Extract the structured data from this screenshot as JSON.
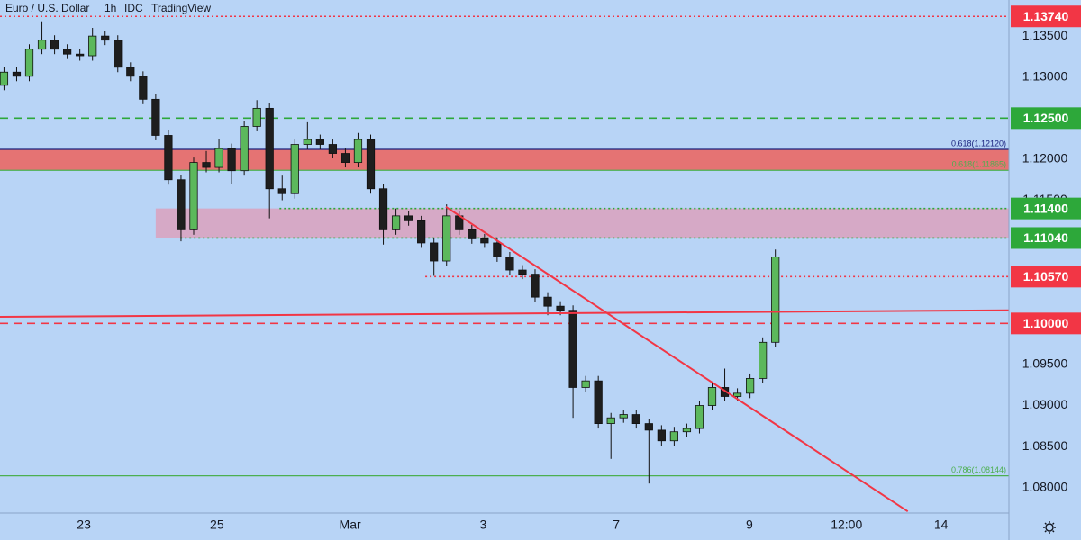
{
  "header": {
    "symbol": "Euro / U.S. Dollar",
    "interval": "1h",
    "source": "IDC",
    "brand": "TradingView"
  },
  "chart_data": {
    "type": "candlestick",
    "xlim": [
      -1.26,
      13.9
    ],
    "ylim": [
      1.0769,
      1.1394
    ],
    "xticks": [
      {
        "value": 0,
        "label": "23"
      },
      {
        "value": 2,
        "label": "25"
      },
      {
        "value": 4,
        "label": "Mar"
      },
      {
        "value": 6,
        "label": "3"
      },
      {
        "value": 8,
        "label": "7"
      },
      {
        "value": 10,
        "label": "9"
      },
      {
        "value": 11.46,
        "label": "12:00"
      },
      {
        "value": 12.88,
        "label": "14"
      }
    ],
    "yticks": [
      {
        "value": 1.135,
        "label": "1.13500"
      },
      {
        "value": 1.13,
        "label": "1.13000"
      },
      {
        "value": 1.12,
        "label": "1.12000"
      },
      {
        "value": 1.115,
        "label": "1.11500"
      },
      {
        "value": 1.095,
        "label": "1.09500"
      },
      {
        "value": 1.09,
        "label": "1.09000"
      },
      {
        "value": 1.085,
        "label": "1.08500"
      },
      {
        "value": 1.08,
        "label": "1.08000"
      }
    ],
    "up_color": "#5cb85c",
    "down_color": "#1e1e1e",
    "background": "#b8d4f6",
    "x": [
      -1.2,
      -1.01,
      -0.82,
      -0.63,
      -0.44,
      -0.25,
      -0.06,
      0.13,
      0.32,
      0.51,
      0.7,
      0.89,
      1.08,
      1.27,
      1.46,
      1.65,
      1.84,
      2.03,
      2.22,
      2.41,
      2.6,
      2.79,
      2.98,
      3.17,
      3.36,
      3.55,
      3.74,
      3.93,
      4.12,
      4.31,
      4.5,
      4.69,
      4.88,
      5.07,
      5.26,
      5.45,
      5.64,
      5.83,
      6.02,
      6.21,
      6.4,
      6.59,
      6.78,
      6.97,
      7.16,
      7.35,
      7.54,
      7.73,
      7.92,
      8.11,
      8.3,
      8.49,
      8.68,
      8.87,
      9.06,
      9.25,
      9.44,
      9.63,
      9.82,
      10.01,
      10.2,
      10.39
    ],
    "open": [
      1.129,
      1.1306,
      1.1301,
      1.1334,
      1.1345,
      1.1334,
      1.1328,
      1.1326,
      1.135,
      1.1345,
      1.1312,
      1.1301,
      1.1273,
      1.1229,
      1.1175,
      1.1114,
      1.1196,
      1.119,
      1.1213,
      1.1186,
      1.124,
      1.1262,
      1.1164,
      1.1158,
      1.1218,
      1.1224,
      1.1218,
      1.1207,
      1.1196,
      1.1224,
      1.1164,
      1.1114,
      1.1131,
      1.1125,
      1.1098,
      1.1076,
      1.1131,
      1.1114,
      1.1103,
      1.1098,
      1.1081,
      1.1065,
      1.106,
      1.1032,
      1.1021,
      1.1016,
      1.0922,
      1.093,
      1.0878,
      1.0885,
      1.0889,
      1.0878,
      1.087,
      1.0857,
      1.0868,
      1.0872,
      1.09,
      1.0922,
      1.0911,
      1.0915,
      1.0933,
      1.0977
    ],
    "high": [
      1.1312,
      1.1312,
      1.134,
      1.1368,
      1.1351,
      1.134,
      1.1334,
      1.136,
      1.1356,
      1.1351,
      1.1318,
      1.1307,
      1.1279,
      1.1235,
      1.1181,
      1.1202,
      1.121,
      1.1225,
      1.1219,
      1.1246,
      1.1272,
      1.1268,
      1.118,
      1.1224,
      1.1245,
      1.123,
      1.1224,
      1.1213,
      1.1232,
      1.123,
      1.117,
      1.114,
      1.1137,
      1.1131,
      1.1104,
      1.1145,
      1.1137,
      1.112,
      1.1109,
      1.1104,
      1.1087,
      1.1071,
      1.1066,
      1.1038,
      1.1027,
      1.1022,
      1.0936,
      1.0936,
      1.0891,
      1.0895,
      1.0895,
      1.0884,
      1.0876,
      1.0874,
      1.0878,
      1.0906,
      1.0928,
      1.0945,
      1.0921,
      1.0939,
      1.0983,
      1.109
    ],
    "low": [
      1.1284,
      1.1295,
      1.1295,
      1.1328,
      1.1328,
      1.1322,
      1.132,
      1.132,
      1.1339,
      1.1306,
      1.1295,
      1.1267,
      1.1223,
      1.1169,
      1.11,
      1.1108,
      1.1184,
      1.1184,
      1.117,
      1.118,
      1.1234,
      1.1128,
      1.115,
      1.1152,
      1.1212,
      1.1212,
      1.1201,
      1.119,
      1.119,
      1.1158,
      1.1096,
      1.1108,
      1.1119,
      1.1092,
      1.1058,
      1.107,
      1.1108,
      1.1097,
      1.1092,
      1.1075,
      1.1059,
      1.1054,
      1.1026,
      1.101,
      1.101,
      1.0885,
      1.0916,
      1.0872,
      1.0835,
      1.0879,
      1.0872,
      1.0805,
      1.0851,
      1.0851,
      1.0862,
      1.0866,
      1.0894,
      1.0905,
      1.0905,
      1.0909,
      1.0927,
      1.0971
    ],
    "close": [
      1.1306,
      1.1301,
      1.1334,
      1.1345,
      1.1334,
      1.1328,
      1.1326,
      1.135,
      1.1345,
      1.1312,
      1.1301,
      1.1273,
      1.1229,
      1.1175,
      1.1114,
      1.1196,
      1.119,
      1.1213,
      1.1186,
      1.124,
      1.1262,
      1.1164,
      1.1158,
      1.1218,
      1.1224,
      1.1218,
      1.1207,
      1.1196,
      1.1224,
      1.1164,
      1.1114,
      1.1131,
      1.1125,
      1.1098,
      1.1076,
      1.1131,
      1.1114,
      1.1103,
      1.1098,
      1.1081,
      1.1065,
      1.106,
      1.1032,
      1.1021,
      1.1016,
      1.0922,
      1.093,
      1.0878,
      1.0885,
      1.0889,
      1.0878,
      1.087,
      1.0857,
      1.0868,
      1.0872,
      1.09,
      1.0922,
      1.0911,
      1.0915,
      1.0933,
      1.0977,
      1.1081
    ],
    "zones": [
      {
        "y": [
          1.11865,
          1.1212
        ],
        "color": "#e57373"
      },
      {
        "x_start": 1.08,
        "y": [
          1.1104,
          1.114
        ],
        "color": "#d6a9c6"
      }
    ],
    "fib_levels": [
      {
        "value": 1.1212,
        "label": "0.618(1.12120)",
        "color": "#1a237e"
      },
      {
        "value": 1.11865,
        "label": "0.618(1.11865)",
        "color": "#4caf50"
      },
      {
        "value": 1.08144,
        "label": "0.786(1.08144)",
        "color": "#4caf50"
      }
    ],
    "levels": [
      {
        "value": 1.1374,
        "label": "1.13740",
        "color": "#f23645",
        "style": "dotted"
      },
      {
        "value": 1.125,
        "label": "1.12500",
        "color": "#2da83a",
        "style": "dashed"
      },
      {
        "value": 1.114,
        "label": "1.11400",
        "color": "#2da83a",
        "style": "dotted",
        "x_start": 2.94
      },
      {
        "value": 1.1104,
        "label": "1.11040",
        "color": "#2da83a",
        "style": "dotted",
        "x_start": 1.45
      },
      {
        "value": 1.1057,
        "label": "1.10570",
        "color": "#f23645",
        "style": "dotted",
        "x_start": 5.13
      },
      {
        "value": 1.1,
        "label": "1.10000",
        "color": "#f23645",
        "style": "dashed"
      }
    ],
    "trendlines": [
      {
        "x": [
          5.44,
          12.38
        ],
        "y": [
          1.1142,
          1.0771
        ],
        "color": "#f23645"
      },
      {
        "x": [
          -1.26,
          13.9
        ],
        "y": [
          1.1008,
          1.1016
        ],
        "color": "#f23645"
      }
    ]
  }
}
